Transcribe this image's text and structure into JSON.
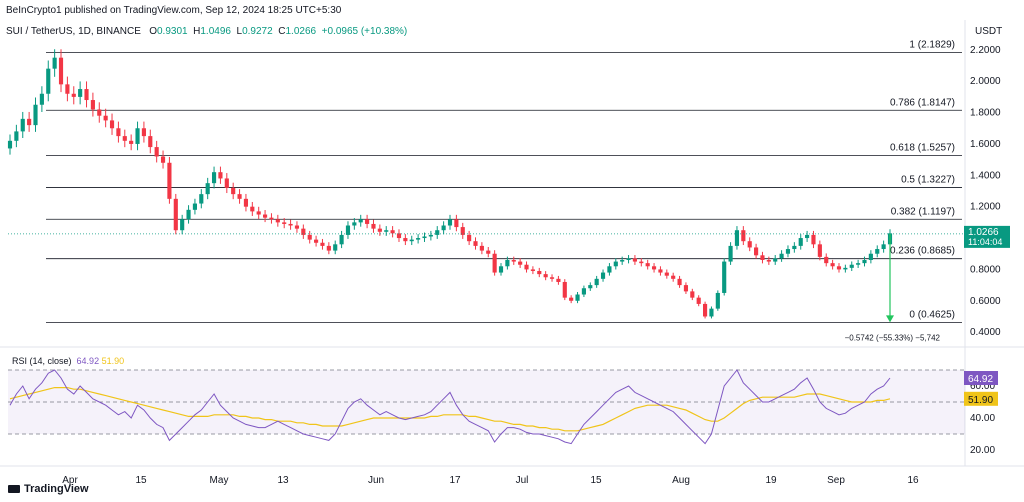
{
  "header": {
    "publisher": "BeInCrypto1 published on TradingView.com, Sep 12, 2024 18:25 UTC+5:30",
    "symbol": "SUI / TetherUS, 1D, BINANCE",
    "o_label": "O",
    "o_value": "0.9301",
    "h_label": "H",
    "h_value": "1.0496",
    "l_label": "L",
    "l_value": "0.9272",
    "c_label": "C",
    "c_value": "1.0266",
    "change": "+0.0965 (+10.38%)",
    "currency": "USDT"
  },
  "footer": {
    "brand": "TradingView"
  },
  "colors": {
    "up": "#089981",
    "down": "#f23645",
    "rsi": "#7e57c2",
    "rsi_ma": "#f0c419",
    "arrow": "#22c55e"
  },
  "chart_data": [
    {
      "type": "candlestick",
      "ylim": [
        0.35,
        2.25
      ],
      "y_ticks": [
        "2.2000",
        "2.0000",
        "1.8000",
        "1.6000",
        "1.4000",
        "1.2000",
        "1.0000",
        "0.8000",
        "0.6000",
        "0.4000"
      ],
      "y_tick_values": [
        2.2,
        2.0,
        1.8,
        1.6,
        1.4,
        1.2,
        1.0,
        0.8,
        0.6,
        0.4
      ],
      "x_tick_labels": [
        "Apr",
        "15",
        "May",
        "13",
        "Jun",
        "17",
        "Jul",
        "15",
        "Aug",
        "19",
        "Sep",
        "16"
      ],
      "last_price": "1.0266",
      "last_price_value": 1.0266,
      "countdown": "11:04:04",
      "fib_levels": [
        {
          "label": "1 (2.1829)",
          "value": 2.1829
        },
        {
          "label": "0.786 (1.8147)",
          "value": 1.8147
        },
        {
          "label": "0.618 (1.5257)",
          "value": 1.5257
        },
        {
          "label": "0.5 (1.3227)",
          "value": 1.3227
        },
        {
          "label": "0.382 (1.1197)",
          "value": 1.1197
        },
        {
          "label": "0.236 (0.8685)",
          "value": 0.8685
        },
        {
          "label": "0 (0.4625)",
          "value": 0.4625
        }
      ],
      "measure_label": "−0.5742 (−55.33%) −5,742",
      "closes": [
        1.62,
        1.68,
        1.76,
        1.72,
        1.85,
        1.92,
        2.08,
        2.15,
        1.98,
        1.92,
        1.9,
        1.95,
        1.88,
        1.82,
        1.78,
        1.75,
        1.7,
        1.65,
        1.62,
        1.6,
        1.7,
        1.65,
        1.58,
        1.52,
        1.48,
        1.25,
        1.05,
        1.12,
        1.18,
        1.22,
        1.28,
        1.35,
        1.42,
        1.38,
        1.32,
        1.28,
        1.25,
        1.2,
        1.17,
        1.15,
        1.13,
        1.12,
        1.1,
        1.09,
        1.08,
        1.06,
        1.02,
        0.99,
        0.97,
        0.95,
        0.92,
        0.96,
        1.02,
        1.08,
        1.1,
        1.12,
        1.09,
        1.06,
        1.04,
        1.05,
        1.03,
        1.0,
        0.98,
        0.99,
        1.0,
        1.01,
        1.02,
        1.05,
        1.08,
        1.12,
        1.07,
        1.02,
        0.98,
        0.95,
        0.92,
        0.9,
        0.78,
        0.82,
        0.86,
        0.85,
        0.83,
        0.8,
        0.79,
        0.77,
        0.75,
        0.74,
        0.72,
        0.62,
        0.6,
        0.64,
        0.68,
        0.7,
        0.74,
        0.78,
        0.82,
        0.85,
        0.86,
        0.87,
        0.85,
        0.84,
        0.82,
        0.8,
        0.78,
        0.76,
        0.74,
        0.7,
        0.66,
        0.62,
        0.58,
        0.5,
        0.55,
        0.65,
        0.85,
        0.95,
        1.05,
        0.98,
        0.94,
        0.89,
        0.86,
        0.85,
        0.87,
        0.9,
        0.93,
        0.95,
        1.0,
        1.02,
        0.96,
        0.88,
        0.84,
        0.82,
        0.8,
        0.81,
        0.83,
        0.84,
        0.86,
        0.9,
        0.93,
        0.96,
        1.03
      ]
    },
    {
      "type": "line",
      "title": "RSI (14, close)",
      "rsi_value_label": "64.92",
      "ma_value_label": "51.90",
      "ylim": [
        15,
        75
      ],
      "y_ticks": [
        "60.00",
        "40.00",
        "20.00"
      ],
      "y_tick_values": [
        60,
        40,
        20
      ],
      "bands": [
        70,
        50,
        30
      ],
      "series": [
        {
          "values": [
            48,
            55,
            60,
            52,
            58,
            62,
            68,
            70,
            65,
            58,
            55,
            60,
            56,
            52,
            50,
            48,
            45,
            42,
            44,
            40,
            48,
            45,
            40,
            36,
            34,
            26,
            30,
            34,
            38,
            42,
            45,
            50,
            55,
            48,
            44,
            40,
            38,
            36,
            35,
            34,
            34,
            36,
            38,
            36,
            34,
            32,
            30,
            29,
            28,
            27,
            26,
            30,
            38,
            46,
            50,
            52,
            48,
            45,
            42,
            44,
            42,
            40,
            39,
            40,
            41,
            42,
            44,
            48,
            52,
            56,
            48,
            42,
            38,
            36,
            34,
            32,
            25,
            30,
            34,
            34,
            33,
            31,
            30,
            30,
            29,
            28,
            27,
            25,
            24,
            30,
            36,
            40,
            44,
            48,
            52,
            56,
            58,
            60,
            56,
            54,
            52,
            50,
            48,
            46,
            44,
            40,
            36,
            32,
            28,
            24,
            30,
            45,
            60,
            65,
            70,
            62,
            58,
            54,
            50,
            50,
            52,
            54,
            56,
            58,
            62,
            65,
            58,
            50,
            46,
            44,
            42,
            43,
            46,
            48,
            50,
            55,
            58,
            60,
            65
          ]
        },
        {
          "values": [
            52,
            53,
            54,
            55,
            56,
            57,
            58,
            59,
            59,
            59,
            58,
            58,
            57,
            56,
            55,
            54,
            53,
            52,
            51,
            50,
            49,
            48,
            47,
            46,
            45,
            44,
            43,
            42,
            41,
            41,
            41,
            41,
            42,
            42,
            42,
            42,
            41,
            41,
            40,
            40,
            39,
            39,
            38,
            38,
            38,
            37,
            37,
            36,
            36,
            35,
            35,
            35,
            35,
            36,
            37,
            38,
            39,
            40,
            40,
            40,
            40,
            40,
            40,
            40,
            40,
            40,
            41,
            41,
            42,
            42,
            42,
            42,
            41,
            41,
            40,
            39,
            38,
            38,
            37,
            36,
            36,
            35,
            35,
            34,
            34,
            33,
            33,
            32,
            32,
            32,
            33,
            34,
            35,
            36,
            38,
            40,
            42,
            44,
            46,
            47,
            48,
            48,
            48,
            48,
            47,
            46,
            45,
            43,
            41,
            39,
            38,
            38,
            40,
            43,
            46,
            49,
            51,
            52,
            53,
            53,
            53,
            53,
            53,
            53,
            54,
            55,
            55,
            55,
            54,
            53,
            52,
            51,
            50,
            50,
            50,
            50,
            51,
            51,
            52
          ]
        }
      ]
    }
  ]
}
